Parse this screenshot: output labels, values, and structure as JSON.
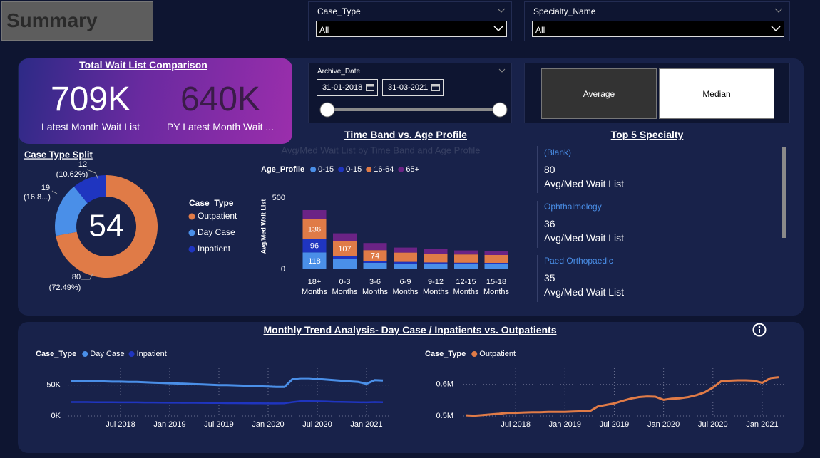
{
  "header": {
    "title": "Summary"
  },
  "filters": [
    {
      "label": "Case_Type",
      "value": "All"
    },
    {
      "label": "Specialty_Name",
      "value": "All"
    }
  ],
  "kpi": {
    "title": "Total Wait List Comparison",
    "items": [
      {
        "value": "709K",
        "label": "Latest Month Wait List"
      },
      {
        "value": "640K",
        "label": "PY Latest Month Wait ..."
      }
    ]
  },
  "date_slicer": {
    "label": "Archive_Date",
    "start": "31-01-2018",
    "end": "31-03-2021"
  },
  "toggle": {
    "options": [
      "Average",
      "Median"
    ],
    "selected": "Median"
  },
  "top_specialty": {
    "title": "Top 5 Specialty",
    "items": [
      {
        "name": "(Blank)",
        "value": 80,
        "label": "Avg/Med Wait List"
      },
      {
        "name": "Ophthalmology",
        "value": 36,
        "label": "Avg/Med Wait List"
      },
      {
        "name": "Paed Orthopaedic",
        "value": 35,
        "label": "Avg/Med Wait List"
      }
    ]
  },
  "trend_title": "Monthly Trend Analysis- Day Case / Inpatients vs. Outpatients",
  "chart_data": [
    {
      "type": "donut",
      "title": "Case Type Split",
      "center_value": 54,
      "legend_title": "Case_Type",
      "categories": [
        "Outpatient",
        "Day Case",
        "Inpatient"
      ],
      "values": [
        80,
        19,
        12
      ],
      "percent_labels": [
        "(72.49%)",
        "(16.8...)",
        "(10.62%)"
      ],
      "colors": [
        "#e07b47",
        "#4a8fe8",
        "#1f35c0"
      ]
    },
    {
      "type": "stacked_bar",
      "title": "Time Band vs. Age Profile",
      "subtitle": "Avg/Med Wait List by Time Band and Age Profile",
      "legend_title": "Age_Profile",
      "y_label": "Avg/Med Wait List",
      "categories": [
        "18+ Months",
        "0-3 Months",
        "3-6 Months",
        "6-9 Months",
        "9-12 Months",
        "12-15 Months",
        "15-18 Months"
      ],
      "series": [
        {
          "name": "0-15",
          "color": "#4a8fe8",
          "values": [
            118,
            70,
            45,
            40,
            38,
            36,
            35
          ]
        },
        {
          "name": "0-15",
          "color": "#1f35c0",
          "values": [
            96,
            20,
            15,
            12,
            10,
            10,
            10
          ]
        },
        {
          "name": "16-64",
          "color": "#e07b47",
          "values": [
            136,
            107,
            74,
            65,
            62,
            58,
            55
          ]
        },
        {
          "name": "65+",
          "color": "#6b2385",
          "values": [
            65,
            55,
            50,
            35,
            30,
            28,
            28
          ]
        }
      ],
      "ylim": [
        0,
        500
      ],
      "yticks": [
        0,
        500
      ]
    },
    {
      "type": "line",
      "legend_title": "Case_Type",
      "x": [
        "2018-01",
        "2018-02",
        "2018-03",
        "2018-04",
        "2018-05",
        "2018-06",
        "2018-07",
        "2018-08",
        "2018-09",
        "2018-10",
        "2018-11",
        "2018-12",
        "2019-01",
        "2019-02",
        "2019-03",
        "2019-04",
        "2019-05",
        "2019-06",
        "2019-07",
        "2019-08",
        "2019-09",
        "2019-10",
        "2019-11",
        "2019-12",
        "2020-01",
        "2020-02",
        "2020-03",
        "2020-04",
        "2020-05",
        "2020-06",
        "2020-07",
        "2020-08",
        "2020-09",
        "2020-10",
        "2020-11",
        "2020-12",
        "2021-01",
        "2021-02",
        "2021-03"
      ],
      "series": [
        {
          "name": "Day Case",
          "color": "#4a8fe8",
          "values": [
            56000,
            56000,
            56500,
            56000,
            56000,
            55500,
            55500,
            55000,
            55000,
            54500,
            54000,
            53500,
            53000,
            52500,
            52000,
            51500,
            51000,
            50500,
            50000,
            50000,
            49500,
            49000,
            48500,
            48000,
            47500,
            47000,
            47000,
            60000,
            61000,
            61000,
            60000,
            59000,
            58000,
            57000,
            56000,
            55000,
            52000,
            58000,
            57500
          ]
        },
        {
          "name": "Inpatient",
          "color": "#1f35c0",
          "values": [
            22500,
            22500,
            22500,
            22300,
            22300,
            22200,
            22000,
            22000,
            22000,
            21800,
            21800,
            21700,
            21500,
            21500,
            21400,
            21300,
            21200,
            21000,
            21000,
            20800,
            20800,
            20600,
            20500,
            20500,
            20300,
            20300,
            20500,
            22500,
            24000,
            24000,
            23800,
            23500,
            23000,
            22800,
            22500,
            22300,
            22000,
            22500,
            22300
          ]
        }
      ],
      "xlim": [
        "2018-01",
        "2021-03"
      ],
      "xticks": [
        {
          "value": "2018-07",
          "label": "Jul 2018"
        },
        {
          "value": "2019-01",
          "label": "Jan 2019"
        },
        {
          "value": "2019-07",
          "label": "Jul 2019"
        },
        {
          "value": "2020-01",
          "label": "Jan 2020"
        },
        {
          "value": "2020-07",
          "label": "Jul 2020"
        },
        {
          "value": "2021-01",
          "label": "Jan 2021"
        }
      ],
      "ylim": [
        0,
        75000
      ],
      "yticks": [
        {
          "value": 0,
          "label": "0K"
        },
        {
          "value": 50000,
          "label": "50K"
        }
      ],
      "grid": true
    },
    {
      "type": "line",
      "legend_title": "Case_Type",
      "x": [
        "2018-01",
        "2018-02",
        "2018-03",
        "2018-04",
        "2018-05",
        "2018-06",
        "2018-07",
        "2018-08",
        "2018-09",
        "2018-10",
        "2018-11",
        "2018-12",
        "2019-01",
        "2019-02",
        "2019-03",
        "2019-04",
        "2019-05",
        "2019-06",
        "2019-07",
        "2019-08",
        "2019-09",
        "2019-10",
        "2019-11",
        "2019-12",
        "2020-01",
        "2020-02",
        "2020-03",
        "2020-04",
        "2020-05",
        "2020-06",
        "2020-07",
        "2020-08",
        "2020-09",
        "2020-10",
        "2020-11",
        "2020-12",
        "2021-01",
        "2021-02",
        "2021-03"
      ],
      "series": [
        {
          "name": "Outpatient",
          "color": "#e07b47",
          "values": [
            502000,
            501000,
            503000,
            505000,
            507000,
            510000,
            510000,
            511000,
            512000,
            512000,
            513000,
            513000,
            513000,
            514000,
            515000,
            515000,
            530000,
            535000,
            540000,
            548000,
            555000,
            560000,
            562000,
            561000,
            551000,
            555000,
            556000,
            560000,
            566000,
            575000,
            590000,
            610000,
            612000,
            613000,
            613000,
            612000,
            605000,
            620000,
            623000
          ]
        }
      ],
      "xlim": [
        "2018-01",
        "2021-03"
      ],
      "xticks": [
        {
          "value": "2018-07",
          "label": "Jul 2018"
        },
        {
          "value": "2019-01",
          "label": "Jan 2019"
        },
        {
          "value": "2019-07",
          "label": "Jul 2019"
        },
        {
          "value": "2020-01",
          "label": "Jan 2020"
        },
        {
          "value": "2020-07",
          "label": "Jul 2020"
        },
        {
          "value": "2021-01",
          "label": "Jan 2021"
        }
      ],
      "ylim": [
        500000,
        647000
      ],
      "yticks": [
        {
          "value": 500000,
          "label": "0.5M"
        },
        {
          "value": 600000,
          "label": "0.6M"
        }
      ],
      "grid": true
    }
  ]
}
